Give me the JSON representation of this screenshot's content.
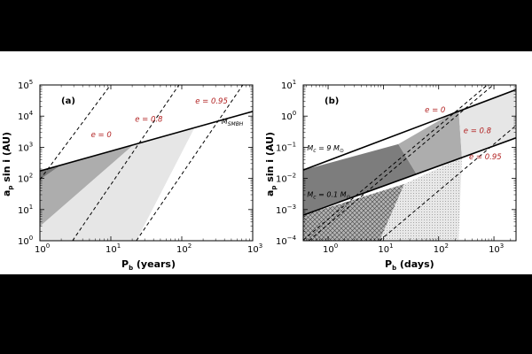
{
  "chart_data": [
    {
      "type": "area",
      "panel_label": "(a)",
      "xlabel": "P",
      "xlabel_sub": "b",
      "xlabel_unit": "(years)",
      "ylabel": "a",
      "ylabel_sub": "p",
      "ylabel_rest": " sin i (AU)",
      "xlog": [
        0,
        3
      ],
      "ylog": [
        0,
        5
      ],
      "x_ticks": [
        {
          "b": "10",
          "e": "0",
          "v": 0
        },
        {
          "b": "10",
          "e": "1",
          "v": 1
        },
        {
          "b": "10",
          "e": "2",
          "v": 2
        },
        {
          "b": "10",
          "e": "3",
          "v": 3
        }
      ],
      "y_ticks": [
        {
          "b": "10",
          "e": "0",
          "v": 0
        },
        {
          "b": "10",
          "e": "1",
          "v": 1
        },
        {
          "b": "10",
          "e": "2",
          "v": 2
        },
        {
          "b": "10",
          "e": "3",
          "v": 3
        },
        {
          "b": "10",
          "e": "4",
          "v": 4
        },
        {
          "b": "10",
          "e": "5",
          "v": 5
        }
      ],
      "series": [
        {
          "name": "e = 0",
          "kind": "dashed",
          "points": [
            [
              0,
              1.96
            ],
            [
              0.996,
              5
            ]
          ]
        },
        {
          "name": "e = 0.8",
          "kind": "dashed",
          "points": [
            [
              0.46,
              0
            ],
            [
              1.96,
              5
            ]
          ]
        },
        {
          "name": "e = 0.95",
          "kind": "dashed",
          "points": [
            [
              1.36,
              0
            ],
            [
              2.86,
              5
            ]
          ]
        },
        {
          "name": "M_SMBH",
          "kind": "solid",
          "points": [
            [
              0,
              2.24
            ],
            [
              3,
              4.15
            ]
          ]
        }
      ],
      "regions": [
        {
          "name": "darkest",
          "fill": "#7d7d7d",
          "points": [
            [
              0,
              1.96
            ],
            [
              0.3,
              2.43
            ],
            [
              0,
              2.24
            ]
          ]
        },
        {
          "name": "dark",
          "fill": "#adadad",
          "points": [
            [
              0,
              0.46
            ],
            [
              1.32,
              3.08
            ],
            [
              0.3,
              2.43
            ],
            [
              0,
              1.96
            ]
          ]
        },
        {
          "name": "light",
          "fill": "#e6e6e6",
          "points": [
            [
              0,
              0
            ],
            [
              1.36,
              0
            ],
            [
              2.18,
              3.63
            ],
            [
              1.32,
              3.08
            ],
            [
              0,
              0.46
            ]
          ]
        }
      ],
      "annotations": [
        {
          "text": "e = 0",
          "color": "#b22222",
          "x": 0.72,
          "y": 3.32
        },
        {
          "text": "e = 0.8",
          "color": "#b22222",
          "x": 1.34,
          "y": 3.82
        },
        {
          "text": "e = 0.95",
          "color": "#b22222",
          "x": 2.19,
          "y": 4.4
        },
        {
          "text": "M",
          "sub": "SMBH",
          "color": "#000000",
          "x": 2.56,
          "y": 3.75
        }
      ]
    },
    {
      "type": "area",
      "panel_label": "(b)",
      "xlabel": "P",
      "xlabel_sub": "b",
      "xlabel_unit": "(days)",
      "ylabel": "a",
      "ylabel_sub": "p",
      "ylabel_rest": " sin i (AU)",
      "xlog": [
        -0.45,
        3.4
      ],
      "ylog": [
        -4,
        1
      ],
      "x_ticks": [
        {
          "b": "10",
          "e": "0",
          "v": 0
        },
        {
          "b": "10",
          "e": "1",
          "v": 1
        },
        {
          "b": "10",
          "e": "2",
          "v": 2
        },
        {
          "b": "10",
          "e": "3",
          "v": 3
        }
      ],
      "y_ticks": [
        {
          "b": "10",
          "e": "−4",
          "v": -4
        },
        {
          "b": "10",
          "e": "−3",
          "v": -3
        },
        {
          "b": "10",
          "e": "−2",
          "v": -2
        },
        {
          "b": "10",
          "e": "−1",
          "v": -1
        },
        {
          "b": "10",
          "e": "0",
          "v": 0
        },
        {
          "b": "10",
          "e": "1",
          "v": 1
        }
      ],
      "series": [
        {
          "name": "e = 0",
          "kind": "dashed",
          "points": [
            [
              -0.45,
              -3.98
            ],
            [
              2.88,
              1
            ]
          ]
        },
        {
          "name": "e = 0.8",
          "kind": "dashed",
          "points": [
            [
              -0.35,
              -4
            ],
            [
              3.4,
              1.62
            ]
          ]
        },
        {
          "name": "e = 0.95",
          "kind": "dashed",
          "points": [
            [
              0.93,
              -4
            ],
            [
              3.4,
              -0.3
            ]
          ]
        },
        {
          "name": "Mc = 9 Mo",
          "kind": "solid",
          "points": [
            [
              -0.45,
              -1.73
            ],
            [
              3.4,
              0.85
            ]
          ]
        },
        {
          "name": "Mc = 0.1 Mo",
          "kind": "solid",
          "points": [
            [
              -0.45,
              -3.18
            ],
            [
              3.4,
              -0.7
            ]
          ]
        }
      ],
      "regions": [
        {
          "name": "darkest",
          "fill": "#7d7d7d",
          "points": [
            [
              -0.45,
              -1.73
            ],
            [
              -0.45,
              -3.18
            ],
            [
              1.6,
              -1.86
            ],
            [
              1.27,
              -0.9
            ]
          ]
        },
        {
          "name": "mid",
          "fill": "#adadad",
          "points": [
            [
              1.27,
              -0.9
            ],
            [
              1.6,
              -1.86
            ],
            [
              2.42,
              -1.33
            ],
            [
              2.36,
              0.22
            ]
          ]
        },
        {
          "name": "light",
          "fill": "#e6e6e6",
          "points": [
            [
              2.36,
              0.22
            ],
            [
              2.42,
              -1.33
            ],
            [
              3.4,
              -0.7
            ],
            [
              3.4,
              0.85
            ]
          ]
        },
        {
          "name": "hatched",
          "fill": "#b4b4b4",
          "points": [
            [
              -0.45,
              -4
            ],
            [
              0.93,
              -4
            ],
            [
              1.38,
              -2.18
            ],
            [
              -0.45,
              -3.18
            ]
          ]
        },
        {
          "name": "dotted",
          "fill": "#e6e6e6",
          "points": [
            [
              0.93,
              -4
            ],
            [
              2.36,
              -4
            ],
            [
              2.42,
              -1.33
            ],
            [
              1.38,
              -2.18
            ]
          ]
        }
      ],
      "annotations": [
        {
          "text": "e = 0",
          "color": "#b22222",
          "x": 1.75,
          "y": 0.12
        },
        {
          "text": "e = 0.8",
          "color": "#b22222",
          "x": 2.45,
          "y": -0.55
        },
        {
          "text": "e = 0.95",
          "color": "#b22222",
          "x": 2.55,
          "y": -1.38
        },
        {
          "text": "M",
          "sub": "c",
          "suffix": " = 9 M",
          "sub2": "⊙",
          "color": "#000000",
          "x": -0.38,
          "y": -1.1
        },
        {
          "text": "M",
          "sub": "c",
          "suffix": " = 0.1 M",
          "sub2": "⊙",
          "color": "#000000",
          "x": -0.38,
          "y": -2.6
        }
      ]
    }
  ]
}
